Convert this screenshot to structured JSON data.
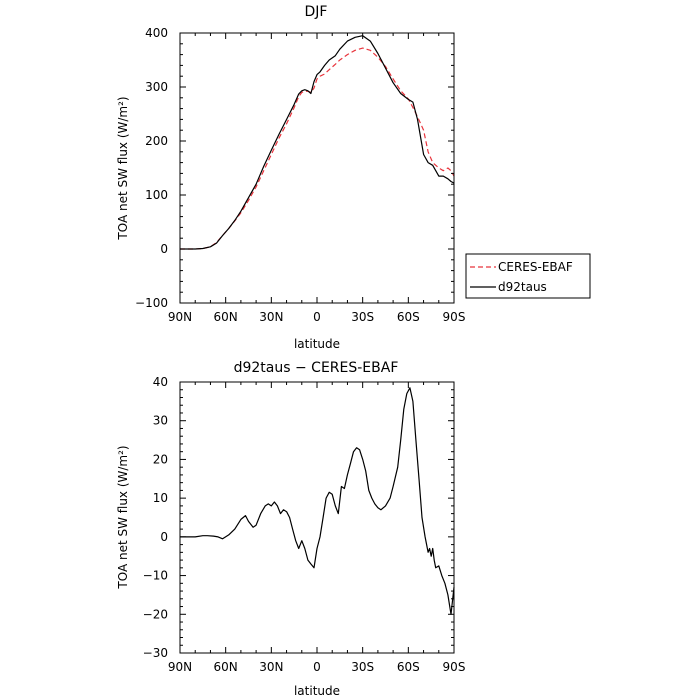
{
  "chart_data": [
    {
      "type": "line",
      "title": "DJF",
      "xlabel": "latitude",
      "ylabel": "TOA net SW flux (W/m²)",
      "xlim": [
        90,
        -90
      ],
      "ylim": [
        -100,
        400
      ],
      "x_ticks": [
        90,
        60,
        30,
        0,
        -30,
        -60,
        -90
      ],
      "x_tick_labels": [
        "90N",
        "60N",
        "30N",
        "0",
        "30S",
        "60S",
        "90S"
      ],
      "y_ticks": [
        -100,
        0,
        100,
        200,
        300,
        400
      ],
      "y_tick_labels": [
        "−100",
        "0",
        "100",
        "200",
        "300",
        "400"
      ],
      "legend": {
        "placement": "right-outside"
      },
      "series": [
        {
          "name": "CERES-EBAF",
          "color": "#e8343c",
          "style": "dashed",
          "x": [
            90,
            80,
            75,
            70,
            66,
            62,
            58,
            54,
            50,
            45,
            40,
            35,
            30,
            25,
            20,
            15,
            12,
            10,
            8,
            6,
            4,
            2,
            0,
            -2,
            -5,
            -8,
            -12,
            -15,
            -20,
            -25,
            -30,
            -35,
            -40,
            -45,
            -50,
            -55,
            -60,
            -63,
            -66,
            -70,
            -73,
            -76,
            -80,
            -83,
            -86,
            -88,
            -90
          ],
          "y": [
            0,
            0,
            1,
            4,
            12,
            25,
            38,
            52,
            67,
            90,
            115,
            145,
            175,
            205,
            232,
            262,
            282,
            290,
            292,
            292,
            290,
            298,
            315,
            320,
            324,
            332,
            342,
            350,
            360,
            368,
            372,
            368,
            355,
            338,
            315,
            293,
            278,
            262,
            245,
            220,
            180,
            160,
            150,
            145,
            150,
            145,
            135
          ]
        },
        {
          "name": "d92taus",
          "color": "#000000",
          "style": "solid",
          "x": [
            90,
            80,
            75,
            70,
            66,
            62,
            58,
            54,
            50,
            45,
            40,
            35,
            30,
            25,
            20,
            15,
            12,
            10,
            8,
            6,
            4,
            2,
            0,
            -2,
            -5,
            -8,
            -12,
            -15,
            -20,
            -25,
            -30,
            -35,
            -40,
            -45,
            -50,
            -55,
            -60,
            -63,
            -66,
            -70,
            -73,
            -76,
            -80,
            -83,
            -86,
            -88,
            -90
          ],
          "y": [
            0,
            0,
            1,
            4,
            11,
            25,
            38,
            53,
            70,
            95,
            120,
            153,
            183,
            212,
            240,
            268,
            287,
            293,
            295,
            293,
            288,
            310,
            323,
            328,
            340,
            350,
            358,
            370,
            385,
            392,
            395,
            385,
            362,
            335,
            308,
            288,
            277,
            272,
            240,
            175,
            160,
            155,
            135,
            135,
            130,
            125,
            122
          ]
        }
      ]
    },
    {
      "type": "line",
      "title": "d92taus − CERES-EBAF",
      "xlabel": "latitude",
      "ylabel": "TOA net SW flux (W/m²)",
      "xlim": [
        90,
        -90
      ],
      "ylim": [
        -30,
        40
      ],
      "x_ticks": [
        90,
        60,
        30,
        0,
        -30,
        -60,
        -90
      ],
      "x_tick_labels": [
        "90N",
        "60N",
        "30N",
        "0",
        "30S",
        "60S",
        "90S"
      ],
      "y_ticks": [
        -30,
        -20,
        -10,
        0,
        10,
        20,
        30,
        40
      ],
      "y_tick_labels": [
        "−30",
        "−20",
        "−10",
        "0",
        "10",
        "20",
        "30",
        "40"
      ],
      "series": [
        {
          "color": "#000000",
          "style": "solid",
          "x": [
            90,
            80,
            75,
            72,
            68,
            65,
            62,
            58,
            54,
            50,
            47,
            45,
            42,
            40,
            37,
            34,
            32,
            30,
            28,
            26,
            24,
            22,
            20,
            18,
            16,
            14,
            12,
            10,
            8,
            6,
            4,
            2,
            0,
            -2,
            -4,
            -6,
            -8,
            -10,
            -12,
            -14,
            -16,
            -18,
            -20,
            -22,
            -24,
            -26,
            -28,
            -30,
            -32,
            -34,
            -36,
            -38,
            -40,
            -42,
            -45,
            -48,
            -50,
            -53,
            -55,
            -57,
            -59,
            -61,
            -63,
            -65,
            -67,
            -69,
            -71,
            -73,
            -74,
            -75,
            -76,
            -77,
            -78,
            -80,
            -82,
            -84,
            -86,
            -88,
            -90
          ],
          "y": [
            0,
            0,
            0.3,
            0.3,
            0.2,
            0,
            -0.5,
            0.5,
            2,
            4.5,
            5.5,
            4,
            2.5,
            3,
            6,
            8,
            8.5,
            8,
            9,
            8,
            6,
            7,
            6.5,
            5,
            2,
            -1,
            -3,
            -1,
            -3,
            -6,
            -7,
            -8,
            -3,
            0,
            5,
            10,
            11.5,
            11,
            8,
            6,
            13,
            12.5,
            16,
            19,
            22,
            23,
            22.5,
            20,
            17,
            12,
            10,
            8.5,
            7.5,
            7,
            8,
            10,
            13,
            18,
            25,
            33,
            37,
            38.5,
            35,
            25,
            15,
            5,
            0,
            -4,
            -3,
            -5,
            -3,
            -6,
            -8,
            -7.5,
            -10,
            -12,
            -15,
            -20,
            -13
          ]
        }
      ]
    }
  ]
}
